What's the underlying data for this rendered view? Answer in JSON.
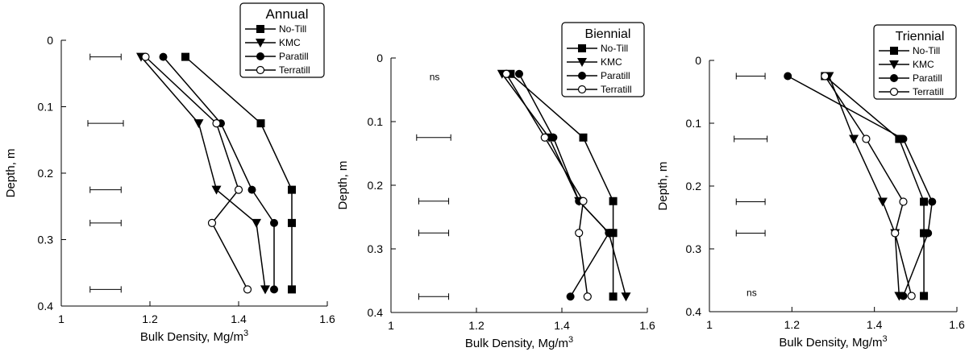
{
  "figure_colors": {
    "ink": "#000000",
    "background": "#ffffff"
  },
  "chart_data": [
    {
      "type": "line",
      "title": "Annual",
      "xlabel": "Bulk Density, Mg/m",
      "xlabel_sup": "3",
      "ylabel": "Depth, m",
      "xlim": [
        1,
        1.6
      ],
      "ylim": [
        0,
        0.4
      ],
      "y_inverted": true,
      "x_ticks": [
        "1",
        "1.2",
        "1.4",
        "1.6"
      ],
      "y_ticks": [
        "0",
        "0.1",
        "0.2",
        "0.3",
        "0.4"
      ],
      "grid": false,
      "legend_position": "top-right",
      "note": "",
      "series": [
        {
          "name": "No-Till",
          "marker": "filled-square",
          "points": [
            [
              1.28,
              0.025
            ],
            [
              1.45,
              0.125
            ],
            [
              1.52,
              0.225
            ],
            [
              1.52,
              0.275
            ],
            [
              1.52,
              0.375
            ]
          ]
        },
        {
          "name": "KMC",
          "marker": "filled-triangle-down",
          "points": [
            [
              1.18,
              0.025
            ],
            [
              1.31,
              0.125
            ],
            [
              1.35,
              0.225
            ],
            [
              1.44,
              0.275
            ],
            [
              1.46,
              0.375
            ]
          ]
        },
        {
          "name": "Paratill",
          "marker": "filled-circle",
          "points": [
            [
              1.23,
              0.025
            ],
            [
              1.36,
              0.125
            ],
            [
              1.43,
              0.225
            ],
            [
              1.48,
              0.275
            ],
            [
              1.48,
              0.375
            ]
          ]
        },
        {
          "name": "Terratill",
          "marker": "open-circle",
          "points": [
            [
              1.19,
              0.025
            ],
            [
              1.35,
              0.125
            ],
            [
              1.4,
              0.225
            ],
            [
              1.34,
              0.275
            ],
            [
              1.42,
              0.375
            ]
          ]
        }
      ],
      "error_bars": [
        {
          "y": 0.025,
          "x0": 1.065,
          "x1": 1.135
        },
        {
          "y": 0.125,
          "x0": 1.06,
          "x1": 1.14
        },
        {
          "y": 0.225,
          "x0": 1.065,
          "x1": 1.135
        },
        {
          "y": 0.275,
          "x0": 1.065,
          "x1": 1.135
        },
        {
          "y": 0.375,
          "x0": 1.065,
          "x1": 1.135
        }
      ]
    },
    {
      "type": "line",
      "title": "Biennial",
      "xlabel": "Bulk Density, Mg/m",
      "xlabel_sup": "3",
      "ylabel": "Depth, m",
      "xlim": [
        1,
        1.6
      ],
      "ylim": [
        0,
        0.4
      ],
      "y_inverted": true,
      "x_ticks": [
        "1",
        "1.2",
        "1.4",
        "1.6"
      ],
      "y_ticks": [
        "0",
        "0.1",
        "0.2",
        "0.3",
        "0.4"
      ],
      "grid": false,
      "legend_position": "top-right",
      "note": "ns",
      "note_at": [
        1.09,
        0.03
      ],
      "series": [
        {
          "name": "No-Till",
          "marker": "filled-square",
          "points": [
            [
              1.28,
              0.025
            ],
            [
              1.45,
              0.125
            ],
            [
              1.52,
              0.225
            ],
            [
              1.52,
              0.275
            ],
            [
              1.52,
              0.375
            ]
          ]
        },
        {
          "name": "KMC",
          "marker": "filled-triangle-down",
          "points": [
            [
              1.26,
              0.025
            ],
            [
              1.37,
              0.125
            ],
            [
              1.44,
              0.225
            ],
            [
              1.51,
              0.275
            ],
            [
              1.55,
              0.375
            ]
          ]
        },
        {
          "name": "Paratill",
          "marker": "filled-circle",
          "points": [
            [
              1.3,
              0.025
            ],
            [
              1.38,
              0.125
            ],
            [
              1.44,
              0.225
            ],
            [
              1.51,
              0.275
            ],
            [
              1.42,
              0.375
            ]
          ]
        },
        {
          "name": "Terratill",
          "marker": "open-circle",
          "points": [
            [
              1.27,
              0.025
            ],
            [
              1.36,
              0.125
            ],
            [
              1.45,
              0.225
            ],
            [
              1.44,
              0.275
            ],
            [
              1.46,
              0.375
            ]
          ]
        }
      ],
      "error_bars": [
        {
          "y": 0.125,
          "x0": 1.06,
          "x1": 1.14
        },
        {
          "y": 0.225,
          "x0": 1.065,
          "x1": 1.135
        },
        {
          "y": 0.275,
          "x0": 1.065,
          "x1": 1.135
        },
        {
          "y": 0.375,
          "x0": 1.065,
          "x1": 1.135
        }
      ]
    },
    {
      "type": "line",
      "title": "Triennial",
      "xlabel": "Bulk Density, Mg/m",
      "xlabel_sup": "3",
      "ylabel": "Depth, m",
      "xlim": [
        1,
        1.6
      ],
      "ylim": [
        0,
        0.4
      ],
      "y_inverted": true,
      "x_ticks": [
        "1",
        "1.2",
        "1.4",
        "1.6"
      ],
      "y_ticks": [
        "0",
        "0.1",
        "0.2",
        "0.3",
        "0.4"
      ],
      "grid": false,
      "legend_position": "top-right",
      "note": "ns",
      "note_at": [
        1.09,
        0.37
      ],
      "series": [
        {
          "name": "No-Till",
          "marker": "filled-square",
          "points": [
            [
              1.28,
              0.025
            ],
            [
              1.46,
              0.125
            ],
            [
              1.52,
              0.225
            ],
            [
              1.52,
              0.275
            ],
            [
              1.52,
              0.375
            ]
          ]
        },
        {
          "name": "KMC",
          "marker": "filled-triangle-down",
          "points": [
            [
              1.29,
              0.025
            ],
            [
              1.35,
              0.125
            ],
            [
              1.42,
              0.225
            ],
            [
              1.45,
              0.275
            ],
            [
              1.46,
              0.375
            ]
          ]
        },
        {
          "name": "Paratill",
          "marker": "filled-circle",
          "points": [
            [
              1.19,
              0.025
            ],
            [
              1.47,
              0.125
            ],
            [
              1.54,
              0.225
            ],
            [
              1.53,
              0.275
            ],
            [
              1.47,
              0.375
            ]
          ]
        },
        {
          "name": "Terratill",
          "marker": "open-circle",
          "points": [
            [
              1.28,
              0.025
            ],
            [
              1.38,
              0.125
            ],
            [
              1.47,
              0.225
            ],
            [
              1.45,
              0.275
            ],
            [
              1.49,
              0.375
            ]
          ]
        }
      ],
      "error_bars": [
        {
          "y": 0.025,
          "x0": 1.065,
          "x1": 1.135
        },
        {
          "y": 0.125,
          "x0": 1.06,
          "x1": 1.14
        },
        {
          "y": 0.225,
          "x0": 1.065,
          "x1": 1.135
        },
        {
          "y": 0.275,
          "x0": 1.065,
          "x1": 1.135
        }
      ]
    }
  ]
}
